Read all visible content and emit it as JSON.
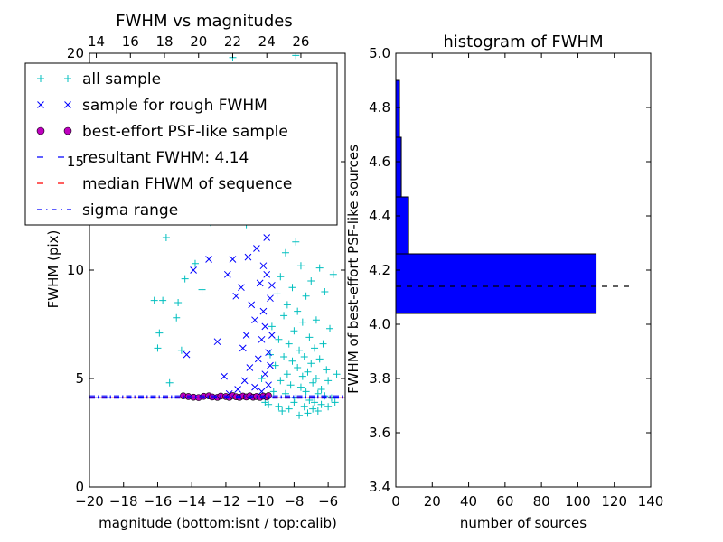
{
  "chart_data": [
    {
      "type": "scatter",
      "title": "FWHM vs magnitudes",
      "xlabel": "magnitude (bottom:isnt / top:calib)",
      "ylabel": "FWHM (pix)",
      "xlim": [
        -20,
        -5
      ],
      "ylim": [
        0,
        20
      ],
      "x_ticks": [
        "−20",
        "−18",
        "−16",
        "−14",
        "−12",
        "−10",
        "−8",
        "−6"
      ],
      "x_tick_values": [
        -20,
        -18,
        -16,
        -14,
        -12,
        -10,
        -8,
        -6
      ],
      "top_ticks": [
        "14",
        "16",
        "18",
        "20",
        "22",
        "24",
        "26"
      ],
      "top_tick_values": [
        14,
        16,
        18,
        20,
        22,
        24,
        26
      ],
      "top_offset": 33.6,
      "y_ticks": [
        "0",
        "5",
        "10",
        "15",
        "20"
      ],
      "y_tick_values": [
        0,
        5,
        10,
        15,
        20
      ],
      "colors": {
        "all": "#00bfbf",
        "rough": "#0000ff",
        "best": "#bf00bf",
        "resultant": "#0000ff",
        "median": "#ff0000",
        "sigma": "#0000ff"
      },
      "resultant_fwhm": 4.14,
      "median_fwhm": 4.14,
      "sigma_range": [
        4.1,
        4.2
      ],
      "legend_position": "top",
      "legend": [
        {
          "label": "all sample",
          "marker": "plus"
        },
        {
          "label": "sample for rough FWHM",
          "marker": "cross"
        },
        {
          "label": "best-effort PSF-like sample",
          "marker": "circle"
        },
        {
          "label": "resultant FWHM: 4.14",
          "marker": "dashed"
        },
        {
          "label": "median FHWM of sequence",
          "marker": "dashed-red"
        },
        {
          "label": "sigma range",
          "marker": "dashdot"
        }
      ],
      "series": [
        {
          "key": "all",
          "points": [
            [
              -16.2,
              8.6
            ],
            [
              -16.0,
              6.4
            ],
            [
              -15.9,
              7.1
            ],
            [
              -15.7,
              8.6
            ],
            [
              -15.5,
              11.5
            ],
            [
              -15.3,
              4.8
            ],
            [
              -14.9,
              7.8
            ],
            [
              -14.8,
              8.5
            ],
            [
              -14.6,
              6.3
            ],
            [
              -14.4,
              9.6
            ],
            [
              -13.8,
              10.3
            ],
            [
              -13.4,
              9.1
            ],
            [
              -12.9,
              12.2
            ],
            [
              -11.6,
              19.8
            ],
            [
              -11.3,
              17.5
            ],
            [
              -10.8,
              12.1
            ],
            [
              -9.9,
              5.0
            ],
            [
              -9.7,
              3.9
            ],
            [
              -9.5,
              3.8
            ],
            [
              -9.4,
              6.1
            ],
            [
              -9.3,
              7.4
            ],
            [
              -9.2,
              4.4
            ],
            [
              -9.1,
              5.6
            ],
            [
              -9.0,
              8.9
            ],
            [
              -8.9,
              3.7
            ],
            [
              -8.9,
              6.8
            ],
            [
              -8.8,
              4.9
            ],
            [
              -8.8,
              9.7
            ],
            [
              -8.7,
              12.5
            ],
            [
              -8.7,
              3.5
            ],
            [
              -8.6,
              6.0
            ],
            [
              -8.6,
              7.9
            ],
            [
              -8.5,
              4.3
            ],
            [
              -8.5,
              10.8
            ],
            [
              -8.4,
              5.2
            ],
            [
              -8.4,
              8.4
            ],
            [
              -8.3,
              3.6
            ],
            [
              -8.3,
              6.6
            ],
            [
              -8.2,
              4.7
            ],
            [
              -8.2,
              12.9
            ],
            [
              -8.1,
              5.8
            ],
            [
              -8.1,
              9.2
            ],
            [
              -8.0,
              3.9
            ],
            [
              -8.0,
              7.2
            ],
            [
              -7.9,
              4.1
            ],
            [
              -7.9,
              11.3
            ],
            [
              -7.9,
              19.9
            ],
            [
              -7.8,
              5.5
            ],
            [
              -7.8,
              8.1
            ],
            [
              -7.7,
              3.3
            ],
            [
              -7.7,
              6.3
            ],
            [
              -7.6,
              4.6
            ],
            [
              -7.6,
              10.2
            ],
            [
              -7.5,
              5.1
            ],
            [
              -7.5,
              7.6
            ],
            [
              -7.4,
              3.7
            ],
            [
              -7.4,
              6.0
            ],
            [
              -7.3,
              4.4
            ],
            [
              -7.3,
              8.8
            ],
            [
              -7.2,
              5.3
            ],
            [
              -7.2,
              3.4
            ],
            [
              -7.1,
              6.9
            ],
            [
              -7.1,
              4.0
            ],
            [
              -7.0,
              5.7
            ],
            [
              -7.0,
              9.5
            ],
            [
              -6.9,
              3.6
            ],
            [
              -6.9,
              4.8
            ],
            [
              -6.8,
              6.4
            ],
            [
              -6.8,
              3.9
            ],
            [
              -6.7,
              5.0
            ],
            [
              -6.7,
              7.7
            ],
            [
              -6.6,
              4.3
            ],
            [
              -6.6,
              3.5
            ],
            [
              -6.5,
              5.9
            ],
            [
              -6.5,
              10.1
            ],
            [
              -6.4,
              4.5
            ],
            [
              -6.4,
              3.8
            ],
            [
              -6.3,
              6.6
            ],
            [
              -6.2,
              4.2
            ],
            [
              -6.2,
              9.0
            ],
            [
              -6.1,
              5.4
            ],
            [
              -6.0,
              3.7
            ],
            [
              -6.0,
              4.9
            ],
            [
              -5.9,
              7.3
            ],
            [
              -5.8,
              4.1
            ],
            [
              -5.7,
              9.8
            ],
            [
              -5.6,
              3.9
            ],
            [
              -5.5,
              5.2
            ]
          ]
        },
        {
          "key": "rough",
          "points": [
            [
              -14.3,
              6.1
            ],
            [
              -13.9,
              10.0
            ],
            [
              -13.0,
              10.5
            ],
            [
              -12.5,
              6.7
            ],
            [
              -12.1,
              5.1
            ],
            [
              -11.9,
              9.8
            ],
            [
              -11.8,
              4.3
            ],
            [
              -11.6,
              10.5
            ],
            [
              -11.4,
              8.8
            ],
            [
              -11.3,
              4.5
            ],
            [
              -11.1,
              9.2
            ],
            [
              -11.0,
              6.4
            ],
            [
              -10.9,
              4.9
            ],
            [
              -10.8,
              7.0
            ],
            [
              -10.7,
              10.6
            ],
            [
              -10.6,
              5.5
            ],
            [
              -10.5,
              8.4
            ],
            [
              -10.4,
              12.4
            ],
            [
              -10.3,
              4.6
            ],
            [
              -10.3,
              7.7
            ],
            [
              -10.2,
              11.0
            ],
            [
              -10.1,
              5.9
            ],
            [
              -10.0,
              9.4
            ],
            [
              -10.0,
              13.3
            ],
            [
              -9.9,
              4.4
            ],
            [
              -9.9,
              6.8
            ],
            [
              -9.8,
              8.1
            ],
            [
              -9.8,
              10.2
            ],
            [
              -9.7,
              5.2
            ],
            [
              -9.7,
              7.4
            ],
            [
              -9.6,
              9.8
            ],
            [
              -9.6,
              11.5
            ],
            [
              -9.5,
              4.7
            ],
            [
              -9.5,
              6.2
            ],
            [
              -9.4,
              8.7
            ],
            [
              -9.4,
              5.6
            ],
            [
              -9.3,
              7.0
            ],
            [
              -9.3,
              9.3
            ]
          ]
        },
        {
          "key": "best",
          "points": [
            [
              -14.5,
              4.2
            ],
            [
              -14.2,
              4.17
            ],
            [
              -13.9,
              4.14
            ],
            [
              -13.6,
              4.12
            ],
            [
              -13.3,
              4.18
            ],
            [
              -13.0,
              4.2
            ],
            [
              -12.8,
              4.15
            ],
            [
              -12.5,
              4.13
            ],
            [
              -12.3,
              4.19
            ],
            [
              -12.0,
              4.17
            ],
            [
              -11.8,
              4.13
            ],
            [
              -11.6,
              4.21
            ],
            [
              -11.4,
              4.16
            ],
            [
              -11.2,
              4.13
            ],
            [
              -11.0,
              4.19
            ],
            [
              -10.8,
              4.15
            ],
            [
              -10.6,
              4.2
            ],
            [
              -10.4,
              4.14
            ],
            [
              -10.2,
              4.17
            ],
            [
              -10.0,
              4.13
            ],
            [
              -9.8,
              4.19
            ],
            [
              -9.6,
              4.15
            ],
            [
              -9.5,
              4.21
            ]
          ]
        }
      ]
    },
    {
      "type": "bar",
      "title": "histogram of FWHM",
      "xlabel": "number of sources",
      "ylabel": "FWHM of best-effort PSF-like sources",
      "xlim": [
        0,
        140
      ],
      "ylim": [
        3.4,
        5.0
      ],
      "x_ticks": [
        "0",
        "20",
        "40",
        "60",
        "80",
        "100",
        "120",
        "140"
      ],
      "x_tick_values": [
        0,
        20,
        40,
        60,
        80,
        100,
        120,
        140
      ],
      "y_ticks": [
        "3.4",
        "3.6",
        "3.8",
        "4.0",
        "4.2",
        "4.4",
        "4.6",
        "4.8",
        "5.0"
      ],
      "y_tick_values": [
        3.4,
        3.6,
        3.8,
        4.0,
        4.2,
        4.4,
        4.6,
        4.8,
        5.0
      ],
      "bar_color": "#0000ff",
      "resultant_fwhm": 4.14,
      "resultant_line_xmax": 130,
      "bins": [
        {
          "from": 4.04,
          "to": 4.26,
          "count": 110
        },
        {
          "from": 4.26,
          "to": 4.47,
          "count": 7
        },
        {
          "from": 4.47,
          "to": 4.69,
          "count": 3
        },
        {
          "from": 4.69,
          "to": 4.9,
          "count": 2
        }
      ]
    }
  ]
}
